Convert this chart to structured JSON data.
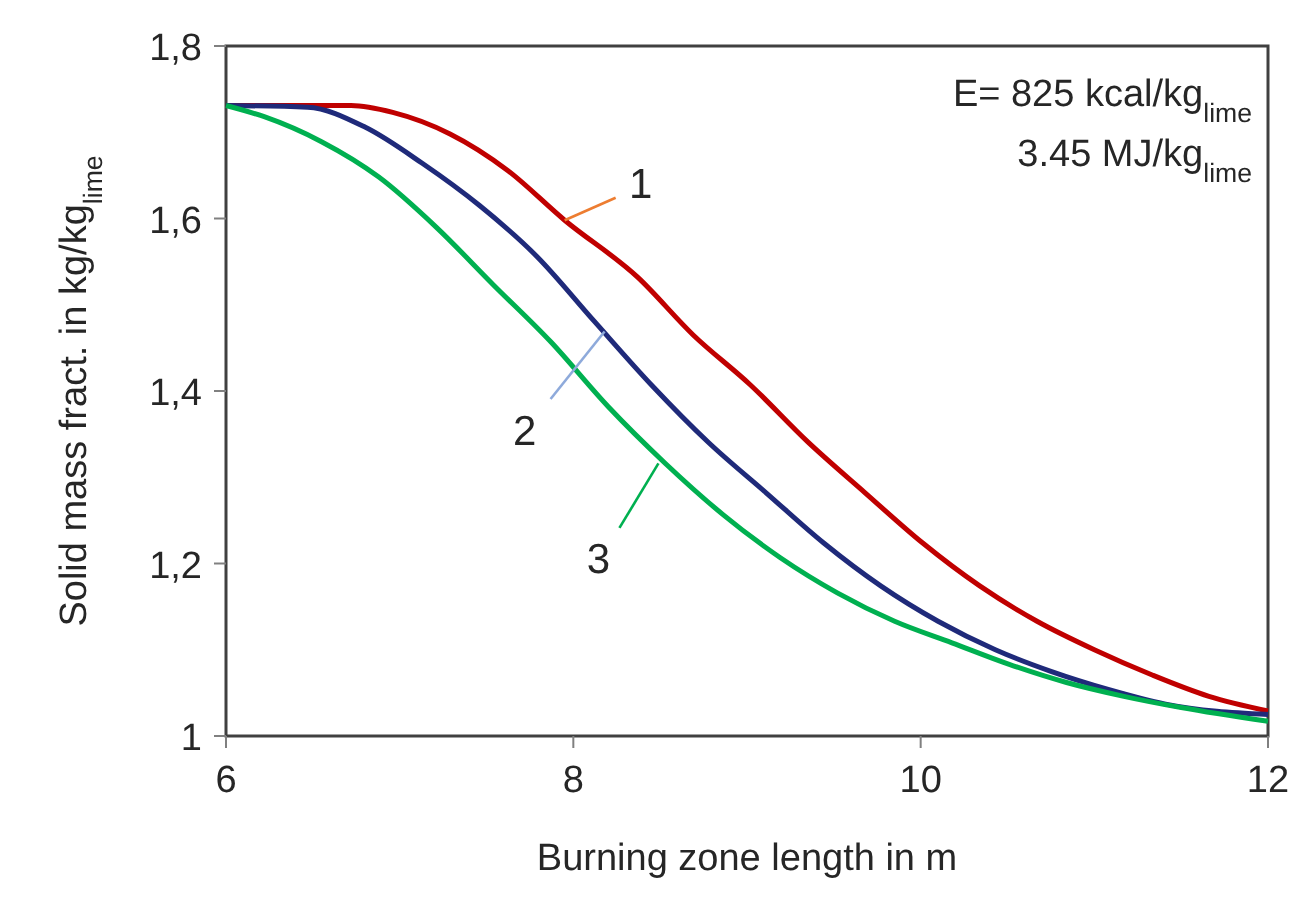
{
  "chart_data": {
    "type": "line",
    "xlabel": "Burning zone length in m",
    "ylabel": "Solid mass fract. in kg/kg$_{lime}$",
    "xlim": [
      6,
      12
    ],
    "xticks": [
      6,
      8,
      10,
      12
    ],
    "ylim": [
      1,
      1.8
    ],
    "yticks": [
      1,
      {
        "value": 1.2,
        "label": "1,2"
      },
      {
        "value": 1.4,
        "label": "1,4"
      },
      {
        "value": 1.6,
        "label": "1,6"
      },
      {
        "value": 1.8,
        "label": "1,8"
      }
    ],
    "grid": false,
    "marker": "none",
    "line_style": "solid",
    "series": [
      {
        "color": "#c00000",
        "x": [
          6,
          6.72,
          6.96,
          7.29,
          7.62,
          7.95,
          8.37,
          8.69,
          9.02,
          9.35,
          9.68,
          10.01,
          10.34,
          10.67,
          11.0,
          11.33,
          11.66,
          12
        ],
        "values": [
          1.731,
          1.731,
          1.723,
          1.698,
          1.656,
          1.598,
          1.532,
          1.465,
          1.407,
          1.341,
          1.282,
          1.224,
          1.174,
          1.133,
          1.1,
          1.071,
          1.046,
          1.029
        ]
      },
      {
        "color": "#1f2a7a",
        "x": [
          6,
          6.47,
          6.8,
          7.13,
          7.46,
          7.79,
          8.12,
          8.45,
          8.78,
          9.11,
          9.44,
          9.77,
          10.1,
          10.43,
          10.75,
          11.08,
          11.41,
          12
        ],
        "values": [
          1.731,
          1.729,
          1.706,
          1.664,
          1.615,
          1.556,
          1.481,
          1.407,
          1.34,
          1.282,
          1.224,
          1.174,
          1.133,
          1.1,
          1.075,
          1.054,
          1.037,
          1.025
        ]
      },
      {
        "color": "#00b050",
        "x": [
          6,
          6.22,
          6.55,
          6.88,
          7.21,
          7.54,
          7.87,
          8.2,
          8.53,
          8.86,
          9.19,
          9.52,
          9.85,
          10.18,
          10.51,
          10.84,
          11.17,
          11.5,
          12
        ],
        "values": [
          1.731,
          1.718,
          1.689,
          1.648,
          1.59,
          1.523,
          1.457,
          1.382,
          1.316,
          1.257,
          1.207,
          1.166,
          1.133,
          1.108,
          1.083,
          1.062,
          1.046,
          1.033,
          1.017
        ]
      }
    ],
    "annotations": [
      "E= 825 kcal/kg$_{lime}$",
      "3.45 MJ/kg$_{lime}$",
      {
        "text": "1",
        "x": 7.95,
        "y": 1.598
      },
      {
        "text": "2",
        "x": 8.18,
        "y": 1.469
      },
      {
        "text": "3",
        "x": 8.49,
        "y": 1.316
      }
    ]
  }
}
